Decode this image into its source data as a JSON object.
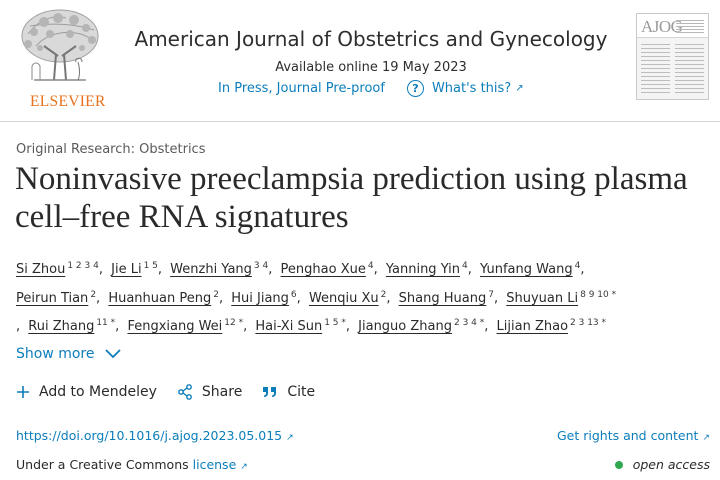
{
  "publisher": {
    "name": "ELSEVIER"
  },
  "journal": {
    "title": "American Journal of Obstetrics and Gynecology",
    "available": "Available online 19 May 2023",
    "status": "In Press, Journal Pre-proof",
    "whats_this": "What's this?",
    "cover_label": "AJOG"
  },
  "article": {
    "category": "Original Research: Obstetrics",
    "title": "Noninvasive preeclampsia prediction using plasma cell–free RNA signatures",
    "authors": [
      {
        "name": "Si Zhou",
        "sup": "1 2 3 4"
      },
      {
        "name": "Jie Li",
        "sup": "1 5"
      },
      {
        "name": "Wenzhi Yang",
        "sup": "3 4"
      },
      {
        "name": "Penghao Xue",
        "sup": "4"
      },
      {
        "name": "Yanning Yin",
        "sup": "4"
      },
      {
        "name": "Yunfang Wang",
        "sup": "4"
      },
      {
        "name": "Peirun Tian",
        "sup": "2"
      },
      {
        "name": "Huanhuan Peng",
        "sup": "2"
      },
      {
        "name": "Hui Jiang",
        "sup": "6"
      },
      {
        "name": "Wenqiu Xu",
        "sup": "2"
      },
      {
        "name": "Shang Huang",
        "sup": "7"
      },
      {
        "name": "Shuyuan Li",
        "sup": "8 9 10 *"
      },
      {
        "name": "Rui Zhang",
        "sup": "11 *"
      },
      {
        "name": "Fengxiang Wei",
        "sup": "12 *"
      },
      {
        "name": "Hai-Xi Sun",
        "sup": "1 5 *"
      },
      {
        "name": "Jianguo Zhang",
        "sup": "2 3 4 *"
      },
      {
        "name": "Lijian Zhao",
        "sup": "2 3 13 *"
      }
    ],
    "show_more": "Show more"
  },
  "actions": {
    "mendeley": "Add to Mendeley",
    "share": "Share",
    "cite": "Cite"
  },
  "links": {
    "doi": "https://doi.org/10.1016/j.ajog.2023.05.015",
    "rights": "Get rights and content",
    "license_prefix": "Under a Creative Commons",
    "license": "license",
    "open_access": "open access"
  },
  "colors": {
    "link": "#0c7dbb",
    "elsevier": "#e9711c",
    "open_access_dot": "#2fa84f"
  }
}
